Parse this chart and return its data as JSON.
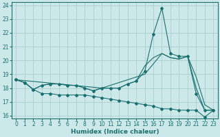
{
  "xlabel": "Humidex (Indice chaleur)",
  "ylabel": "",
  "bg_color": "#cce8e8",
  "grid_color": "#aacece",
  "line_color": "#1a7070",
  "xlim": [
    -0.5,
    23.5
  ],
  "ylim": [
    15.8,
    24.2
  ],
  "yticks": [
    16,
    17,
    18,
    19,
    20,
    21,
    22,
    23,
    24
  ],
  "xticks": [
    0,
    1,
    2,
    3,
    4,
    5,
    6,
    7,
    8,
    9,
    10,
    11,
    12,
    13,
    14,
    15,
    16,
    17,
    18,
    19,
    20,
    21,
    22,
    23
  ],
  "line1_x": [
    0,
    1,
    2,
    3,
    4,
    5,
    6,
    7,
    8,
    9,
    10,
    11,
    12,
    13,
    14,
    15,
    16,
    17,
    18,
    19,
    20,
    21,
    22,
    23
  ],
  "line1_y": [
    18.6,
    18.4,
    17.9,
    17.6,
    17.6,
    17.5,
    17.5,
    17.5,
    17.5,
    17.4,
    17.3,
    17.2,
    17.1,
    17.0,
    16.9,
    16.8,
    16.7,
    16.5,
    16.5,
    16.4,
    16.4,
    16.4,
    15.9,
    16.4
  ],
  "line2_x": [
    0,
    1,
    2,
    3,
    4,
    5,
    6,
    7,
    8,
    9,
    10,
    11,
    12,
    13,
    14,
    15,
    16,
    17,
    18,
    19,
    20,
    21,
    22,
    23
  ],
  "line2_y": [
    18.6,
    18.4,
    17.9,
    18.2,
    18.3,
    18.3,
    18.2,
    18.2,
    18.0,
    17.8,
    18.0,
    18.0,
    18.0,
    18.3,
    18.5,
    19.2,
    21.9,
    23.8,
    20.5,
    20.3,
    20.3,
    17.6,
    16.4,
    16.4
  ],
  "line3_x": [
    0,
    1,
    2,
    3,
    4,
    5,
    6,
    7,
    8,
    9,
    10,
    11,
    12,
    13,
    14,
    15,
    16,
    17,
    18,
    19,
    20,
    21,
    22,
    23
  ],
  "line3_y": [
    18.6,
    18.4,
    17.9,
    18.2,
    18.3,
    18.3,
    18.2,
    18.2,
    18.0,
    17.8,
    18.0,
    18.0,
    18.0,
    18.3,
    18.5,
    19.6,
    20.2,
    20.5,
    20.2,
    20.1,
    20.3,
    18.0,
    16.4,
    16.4
  ],
  "line4_x": [
    0,
    5,
    10,
    15,
    17,
    18,
    19,
    20,
    21,
    22,
    23
  ],
  "line4_y": [
    18.6,
    18.3,
    18.0,
    19.0,
    20.5,
    20.2,
    20.1,
    20.3,
    18.8,
    16.8,
    16.4
  ]
}
